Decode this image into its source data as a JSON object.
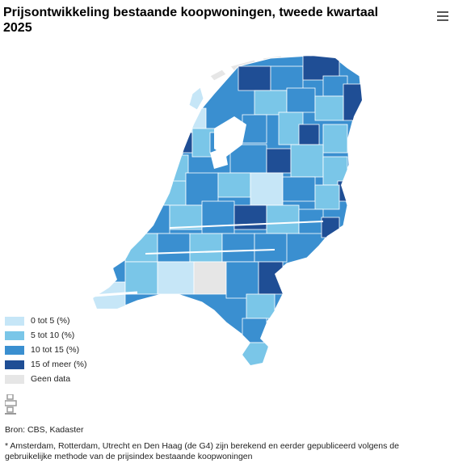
{
  "title": "Prijsontwikkeling bestaande koopwoningen, tweede kwartaal 2025",
  "menu_icon": "hamburger-menu-icon",
  "legend": [
    {
      "label": "0 tot 5 (%)",
      "color": "#c6e6f7"
    },
    {
      "label": "5 tot 10 (%)",
      "color": "#7ac6e8"
    },
    {
      "label": "10 tot 15 (%)",
      "color": "#3a8fd0"
    },
    {
      "label": "15 of meer (%)",
      "color": "#1f4e95"
    },
    {
      "label": "Geen data",
      "color": "#e6e6e6"
    }
  ],
  "logo": "cbs-logo-icon",
  "source": "Bron: CBS, Kadaster",
  "footnote": "* Amsterdam, Rotterdam, Utrecht en Den Haag (de G4) zijn berekend en eerder gepubliceerd volgens de gebruikelijke methode van de prijsindex bestaande koopwoningen"
}
